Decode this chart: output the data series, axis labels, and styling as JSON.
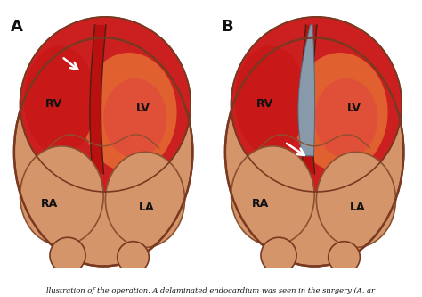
{
  "bg_color": "#ffffff",
  "panel_A_label": "A",
  "panel_B_label": "B",
  "text_color": "#111111",
  "caption": "llustration of the operation. A delaminated endocardium was seen in the surgery (A, ar",
  "caption_fontsize": 6.0,
  "colors": {
    "outer_fill": "#d4956a",
    "outer_edge": "#7a3820",
    "vent_red": "#cc2020",
    "vent_bright": "#e04040",
    "vent_orange": "#e06030",
    "rv_red": "#c81818",
    "septum_fill": "#bb1010",
    "septum_edge": "#4a2010",
    "hematoma_fill": "#8899aa",
    "hematoma_edge": "#556677",
    "atria_fill": "#d4956a",
    "atria_inner": "#c8855a",
    "atria_edge": "#8a5030",
    "groove_color": "#b07050",
    "inner_edge": "#5a2810",
    "white": "#ffffff"
  }
}
